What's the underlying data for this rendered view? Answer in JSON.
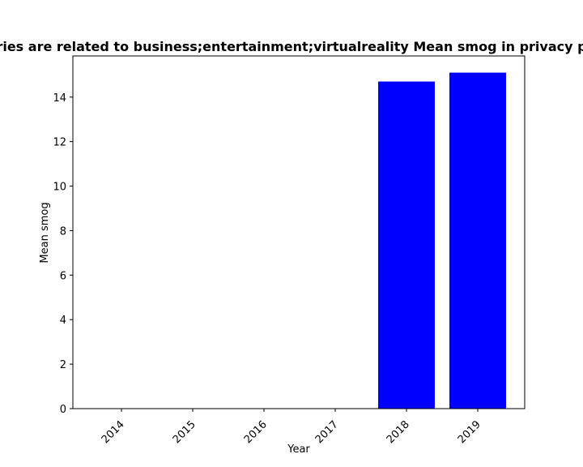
{
  "chart_data": {
    "type": "bar",
    "title": "ries are related to business;entertainment;virtualreality Mean smog in privacy p",
    "xlabel": "Year",
    "ylabel": "Mean smog",
    "categories": [
      "2014",
      "2015",
      "2016",
      "2017",
      "2018",
      "2019"
    ],
    "values": [
      0,
      0,
      0,
      0,
      14.7,
      15.1
    ],
    "ylim": [
      0,
      15.85
    ],
    "yticks": [
      0,
      2,
      4,
      6,
      8,
      10,
      12,
      14
    ],
    "bar_color": "#0000ff",
    "grid": false,
    "legend": "none"
  }
}
